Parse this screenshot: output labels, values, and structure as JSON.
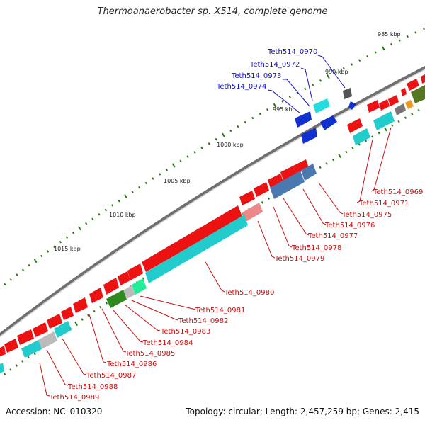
{
  "title": "Thermoanaerobacter sp. X514, complete genome",
  "footer": {
    "accession": "Accession: NC_010320",
    "topology": "Topology: circular; Length: 2,457,259 bp; Genes: 2,415"
  },
  "colors": {
    "backbone": "#8f8f8f",
    "tick": "#2a7a12",
    "forward_label": "#1010c8",
    "reverse_label": "#c81010",
    "red": "#ee1111",
    "cyan": "#22cccc",
    "blue": "#1030d0",
    "steel": "#4a78b0",
    "gray": "#bbbbbb",
    "darkgray": "#555555",
    "green": "#2e8a1e",
    "pink": "#ee8888"
  },
  "kbp_labels": [
    "985 kbp",
    "990 kbp",
    "995 kbp",
    "1000 kbp",
    "1005 kbp",
    "1010 kbp",
    "1015 kbp"
  ],
  "forward_gene_labels": [
    "Teth514_0970",
    "Teth514_0972",
    "Teth514_0973",
    "Teth514_0974"
  ],
  "reverse_gene_labels": [
    "Teth514_0969",
    "Teth514_0971",
    "Teth514_0975",
    "Teth514_0976",
    "Teth514_0977",
    "Teth514_0978",
    "Teth514_0979",
    "Teth514_0980",
    "Teth514_0981",
    "Teth514_0982",
    "Teth514_0983",
    "Teth514_0984",
    "Teth514_0985",
    "Teth514_0986",
    "Teth514_0987",
    "Teth514_0988",
    "Teth514_0989"
  ]
}
